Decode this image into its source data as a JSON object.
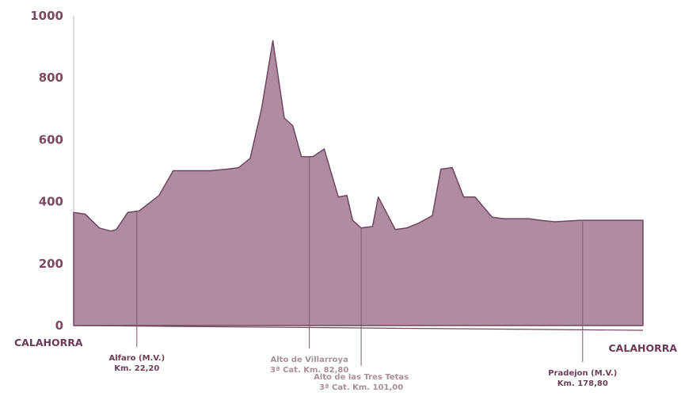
{
  "chart_data": {
    "type": "area",
    "title": "",
    "xlabel": "",
    "ylabel": "",
    "ylim": [
      0,
      1000
    ],
    "yticks": [
      0,
      200,
      400,
      600,
      800,
      1000
    ],
    "ytick_labels": [
      "0",
      "200",
      "400",
      "600",
      "800",
      "1000"
    ],
    "xlim": [
      0,
      200
    ],
    "grid": false,
    "colors": {
      "fill": "#b08ca0",
      "line": "#6f4660",
      "tick_label": "#7a4a63"
    },
    "series": [
      {
        "km": [
          0,
          4,
          9,
          13,
          15,
          19,
          23,
          30,
          35,
          42,
          48,
          54,
          58,
          62,
          66,
          70,
          74,
          77,
          80,
          84,
          88,
          93,
          96,
          98,
          101,
          105,
          107,
          113,
          117,
          121,
          126,
          129,
          133,
          137,
          141,
          147,
          151,
          155,
          160,
          164,
          169,
          178,
          184,
          188,
          192,
          195,
          200
        ],
        "altitude": [
          365,
          360,
          315,
          305,
          310,
          365,
          370,
          420,
          500,
          500,
          500,
          505,
          510,
          540,
          700,
          920,
          670,
          645,
          545,
          545,
          570,
          415,
          420,
          340,
          315,
          320,
          415,
          310,
          315,
          330,
          355,
          505,
          510,
          415,
          415,
          350,
          345,
          345,
          345,
          340,
          335,
          340,
          340,
          340,
          340,
          340,
          340
        ]
      }
    ],
    "start_label": "CALAHORRA",
    "end_label": "CALAHORRA",
    "annotations": [
      {
        "km": 22.2,
        "line1": "Alfaro (M.V.)",
        "line2": "Km. 22,20",
        "color": "#6a4058"
      },
      {
        "km": 82.8,
        "line1": "Alto de Villarroya",
        "line2": "3ª Cat. Km. 82,80",
        "color": "#a89098"
      },
      {
        "km": 101.0,
        "line1": "Alto de las Tres Tetas",
        "line2": "3ª Cat. Km. 101,00",
        "color": "#a89098"
      },
      {
        "km": 178.8,
        "line1": "Pradejon (M.V.)",
        "line2": "Km. 178,80",
        "color": "#6a4058"
      }
    ]
  }
}
